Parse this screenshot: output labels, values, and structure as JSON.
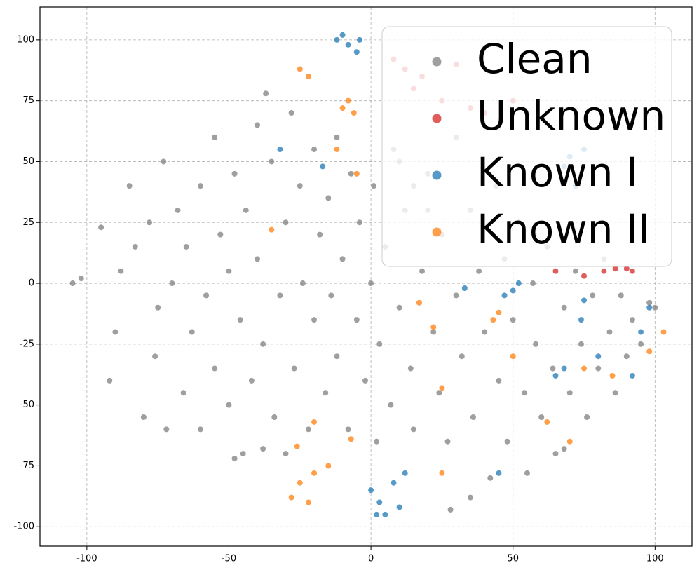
{
  "chart_data": {
    "type": "scatter",
    "xlim": [
      -116.5,
      113
    ],
    "ylim": [
      -108,
      113.5
    ],
    "xticks": [
      -100,
      -50,
      0,
      50,
      100
    ],
    "yticks": [
      -100,
      -75,
      -50,
      -25,
      0,
      25,
      50,
      75,
      100
    ],
    "grid": true,
    "legend": "upper right",
    "series": [
      {
        "name": "Clean",
        "color": "#7f7f7f",
        "x": [
          -105,
          -102,
          -95,
          -92,
          -90,
          -88,
          -85,
          -83,
          -80,
          -78,
          -76,
          -75,
          -73,
          -72,
          -70,
          -68,
          -66,
          -65,
          -63,
          -60,
          -60,
          -58,
          -55,
          -55,
          -53,
          -50,
          -50,
          -48,
          -46,
          -45,
          -44,
          -42,
          -40,
          -40,
          -38,
          -37,
          -35,
          -34,
          -32,
          -30,
          -30,
          -28,
          -27,
          -25,
          -24,
          -22,
          -20,
          -20,
          -18,
          -16,
          -15,
          -14,
          -12,
          -12,
          -10,
          -8,
          -7,
          -5,
          -4,
          -2,
          0,
          1,
          2,
          3,
          5,
          7,
          8,
          10,
          12,
          14,
          15,
          18,
          20,
          22,
          24,
          25,
          27,
          30,
          30,
          32,
          35,
          36,
          38,
          40,
          42,
          44,
          45,
          47,
          48,
          50,
          52,
          54,
          55,
          57,
          58,
          60,
          62,
          64,
          65,
          68,
          70,
          72,
          74,
          76,
          78,
          80,
          82,
          84,
          86,
          88,
          90,
          92,
          95,
          98,
          100,
          -48,
          -38,
          35,
          28,
          68,
          10,
          15,
          20
        ],
        "y": [
          0,
          2,
          23,
          -40,
          -20,
          5,
          40,
          15,
          -55,
          25,
          -30,
          -10,
          50,
          -60,
          0,
          30,
          -45,
          15,
          -20,
          -60,
          40,
          -5,
          60,
          -35,
          20,
          -50,
          5,
          45,
          -15,
          -70,
          30,
          -40,
          10,
          65,
          -25,
          78,
          50,
          -55,
          -5,
          25,
          -70,
          70,
          -35,
          40,
          0,
          -60,
          55,
          -15,
          20,
          -45,
          35,
          -5,
          60,
          -30,
          10,
          -60,
          45,
          -15,
          25,
          -40,
          0,
          40,
          -65,
          -25,
          15,
          -50,
          55,
          -10,
          30,
          -35,
          -60,
          5,
          45,
          -20,
          -45,
          20,
          -65,
          -5,
          60,
          -30,
          30,
          -55,
          5,
          -20,
          -80,
          40,
          -40,
          10,
          -65,
          -15,
          25,
          -45,
          -78,
          0,
          -25,
          -55,
          15,
          -35,
          -70,
          -10,
          -45,
          5,
          -25,
          -55,
          -5,
          -35,
          10,
          -20,
          -45,
          -5,
          -30,
          -15,
          -25,
          -8,
          -10,
          -72,
          -68,
          -88,
          -93,
          -68,
          50,
          40,
          30
        ]
      },
      {
        "name": "Unknown",
        "color": "#d62728",
        "x": [
          65,
          75,
          82,
          86,
          90,
          92,
          8,
          12,
          18,
          15,
          25,
          35,
          40,
          50,
          30
        ],
        "y": [
          5,
          3,
          5,
          6,
          6,
          5,
          92,
          88,
          85,
          80,
          75,
          72,
          70,
          75,
          90
        ]
      },
      {
        "name": "Known I",
        "color": "#1f77b4",
        "x": [
          -12,
          -8,
          -5,
          -4,
          -10,
          0,
          3,
          5,
          8,
          12,
          10,
          2,
          -32,
          50,
          52,
          47,
          33,
          68,
          65,
          95,
          98,
          92,
          74,
          75,
          80,
          -17,
          45,
          70,
          75,
          68,
          72
        ],
        "y": [
          100,
          98,
          95,
          100,
          102,
          -85,
          -90,
          -95,
          -82,
          -78,
          -92,
          -95,
          55,
          -3,
          0,
          -5,
          -2,
          -35,
          -38,
          -20,
          -10,
          -38,
          -15,
          -7,
          -30,
          48,
          -78,
          52,
          55,
          48,
          40
        ]
      },
      {
        "name": "Known II",
        "color": "#ff7f0e",
        "x": [
          -25,
          -22,
          -10,
          -8,
          -6,
          -12,
          -5,
          -25,
          -28,
          -20,
          -15,
          -22,
          17,
          22,
          45,
          43,
          50,
          75,
          85,
          62,
          25,
          -35,
          -26,
          -7,
          -20,
          25,
          70,
          98,
          103
        ],
        "y": [
          88,
          85,
          72,
          75,
          70,
          55,
          45,
          -82,
          -88,
          -78,
          -75,
          -90,
          -8,
          -18,
          -12,
          -15,
          -30,
          -35,
          -38,
          -57,
          -78,
          22,
          -67,
          -64,
          -57,
          -43,
          -65,
          -28,
          -20
        ]
      }
    ]
  }
}
